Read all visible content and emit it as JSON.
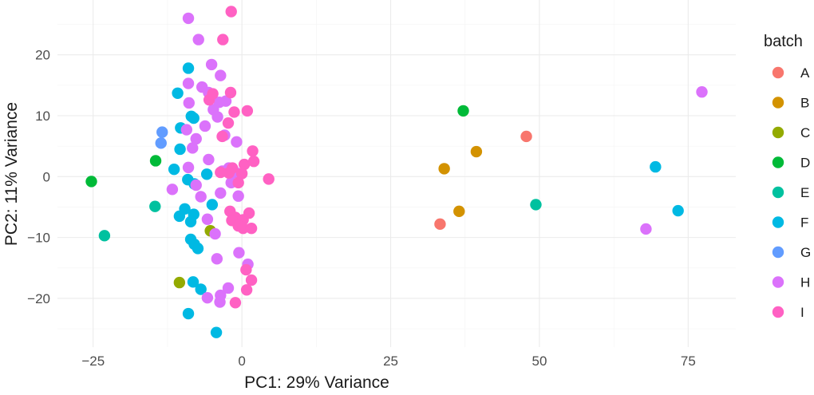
{
  "chart_data": {
    "type": "scatter",
    "xlabel": "PC1: 29% Variance",
    "ylabel": "PC2: 11% Variance",
    "xlim": [
      -31,
      83
    ],
    "ylim": [
      -28,
      29
    ],
    "x_ticks": [
      -25,
      0,
      25,
      50,
      75
    ],
    "y_ticks": [
      -20,
      -10,
      0,
      10,
      20
    ],
    "x_tick_labels": [
      "−25",
      "0",
      "25",
      "50",
      "75"
    ],
    "y_tick_labels": [
      "−20",
      "−10",
      "0",
      "10",
      "20"
    ],
    "grid": true,
    "legend": {
      "title": "batch",
      "position": "right"
    },
    "series": [
      {
        "name": "A",
        "color": "#F8766D",
        "points": [
          [
            33.3,
            -7.8
          ],
          [
            47.8,
            6.6
          ]
        ]
      },
      {
        "name": "B",
        "color": "#D39200",
        "points": [
          [
            34.0,
            1.3
          ],
          [
            36.5,
            -5.7
          ],
          [
            39.4,
            4.1
          ]
        ]
      },
      {
        "name": "C",
        "color": "#93AA00",
        "points": [
          [
            -10.5,
            -17.4
          ],
          [
            -5.3,
            -8.9
          ]
        ]
      },
      {
        "name": "D",
        "color": "#00BA38",
        "points": [
          [
            -25.3,
            -0.8
          ],
          [
            -14.5,
            2.6
          ],
          [
            37.2,
            10.8
          ]
        ]
      },
      {
        "name": "E",
        "color": "#00C19F",
        "points": [
          [
            -23.1,
            -9.7
          ],
          [
            -14.6,
            -4.9
          ],
          [
            49.4,
            -4.6
          ]
        ]
      },
      {
        "name": "F",
        "color": "#00B9E3",
        "points": [
          [
            -9.0,
            17.8
          ],
          [
            -10.8,
            13.7
          ],
          [
            -8.5,
            9.9
          ],
          [
            -10.3,
            8.0
          ],
          [
            -8.1,
            9.6
          ],
          [
            -10.4,
            4.5
          ],
          [
            -11.4,
            1.2
          ],
          [
            -9.1,
            -0.5
          ],
          [
            -8.0,
            -1.2
          ],
          [
            -5.9,
            0.4
          ],
          [
            -10.5,
            -6.5
          ],
          [
            -9.6,
            -5.3
          ],
          [
            -8.1,
            -6.2
          ],
          [
            -8.6,
            -7.4
          ],
          [
            -5.0,
            -4.6
          ],
          [
            -8.6,
            -10.3
          ],
          [
            -8.0,
            -11.1
          ],
          [
            -7.4,
            -11.8
          ],
          [
            -8.2,
            -17.3
          ],
          [
            -6.9,
            -18.5
          ],
          [
            -9.0,
            -22.5
          ],
          [
            -4.3,
            -25.6
          ],
          [
            69.5,
            1.6
          ],
          [
            73.3,
            -5.6
          ]
        ]
      },
      {
        "name": "G",
        "color": "#619CFF",
        "points": [
          [
            -13.4,
            7.3
          ],
          [
            -13.6,
            5.5
          ]
        ]
      },
      {
        "name": "H",
        "color": "#DB72FB",
        "points": [
          [
            -9.0,
            26.0
          ],
          [
            -7.3,
            22.5
          ],
          [
            -5.1,
            18.4
          ],
          [
            -3.6,
            16.6
          ],
          [
            -9.0,
            15.3
          ],
          [
            -6.7,
            14.7
          ],
          [
            -5.6,
            13.8
          ],
          [
            -2.7,
            12.4
          ],
          [
            -3.8,
            12.2
          ],
          [
            -8.9,
            12.1
          ],
          [
            -4.8,
            11.0
          ],
          [
            -4.1,
            9.8
          ],
          [
            -6.2,
            8.3
          ],
          [
            -9.3,
            7.7
          ],
          [
            -7.7,
            6.2
          ],
          [
            -2.9,
            6.8
          ],
          [
            -0.9,
            5.7
          ],
          [
            -8.3,
            4.7
          ],
          [
            -5.6,
            2.8
          ],
          [
            -9.0,
            1.5
          ],
          [
            -2.2,
            1.4
          ],
          [
            -1.1,
            0.7
          ],
          [
            -3.3,
            0.9
          ],
          [
            -7.7,
            -1.4
          ],
          [
            -1.8,
            -1.0
          ],
          [
            -11.7,
            -2.1
          ],
          [
            -3.6,
            -2.7
          ],
          [
            -6.9,
            -3.3
          ],
          [
            -0.6,
            -3.2
          ],
          [
            -5.8,
            -7.0
          ],
          [
            -4.5,
            -9.4
          ],
          [
            -0.5,
            -12.5
          ],
          [
            1.0,
            -14.4
          ],
          [
            -4.2,
            -13.5
          ],
          [
            -2.3,
            -18.3
          ],
          [
            -5.8,
            -19.9
          ],
          [
            -3.6,
            -19.5
          ],
          [
            -3.7,
            -20.6
          ],
          [
            67.9,
            -8.6
          ],
          [
            77.3,
            13.9
          ]
        ]
      },
      {
        "name": "I",
        "color": "#FF61C3",
        "points": [
          [
            -1.8,
            27.1
          ],
          [
            -3.2,
            22.5
          ],
          [
            -5.5,
            12.6
          ],
          [
            -4.9,
            13.6
          ],
          [
            -1.9,
            13.8
          ],
          [
            -1.3,
            10.6
          ],
          [
            0.9,
            10.8
          ],
          [
            -2.3,
            8.8
          ],
          [
            -3.3,
            6.6
          ],
          [
            1.8,
            4.2
          ],
          [
            0.4,
            2.0
          ],
          [
            2.0,
            2.5
          ],
          [
            -1.6,
            1.4
          ],
          [
            -2.2,
            0.6
          ],
          [
            -3.6,
            0.7
          ],
          [
            0.0,
            0.5
          ],
          [
            4.5,
            -0.4
          ],
          [
            -0.6,
            -1.0
          ],
          [
            -2.0,
            -5.7
          ],
          [
            -1.1,
            -6.7
          ],
          [
            0.2,
            -7.1
          ],
          [
            1.2,
            -6.0
          ],
          [
            -1.7,
            -7.2
          ],
          [
            -0.6,
            -8.1
          ],
          [
            0.2,
            -8.5
          ],
          [
            1.6,
            -8.5
          ],
          [
            1.6,
            -17.0
          ],
          [
            0.7,
            -15.3
          ],
          [
            0.8,
            -18.6
          ],
          [
            -1.1,
            -20.7
          ]
        ]
      }
    ]
  }
}
